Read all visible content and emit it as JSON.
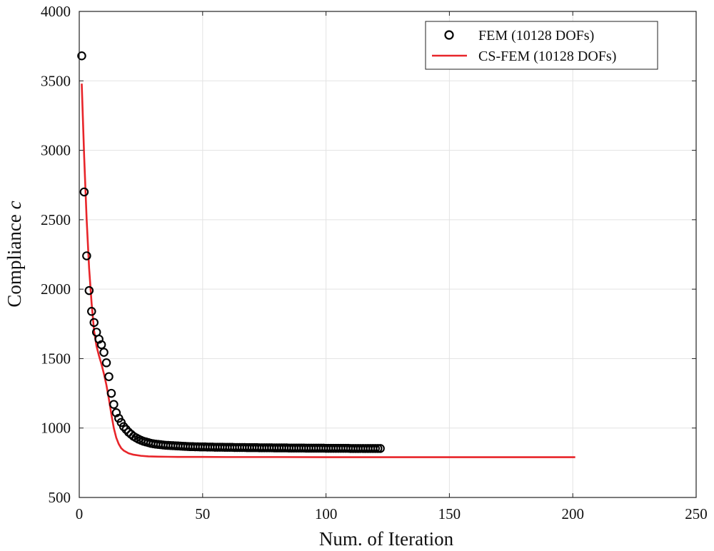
{
  "chart_data": {
    "type": "line",
    "xlabel": "Num. of Iteration",
    "ylabel": "Compliance",
    "ylabel_symbol": "c",
    "xlim": [
      0,
      250
    ],
    "ylim": [
      500,
      4000
    ],
    "xticks": [
      0,
      50,
      100,
      150,
      200,
      250
    ],
    "yticks": [
      500,
      1000,
      1500,
      2000,
      2500,
      3000,
      3500,
      4000
    ],
    "grid": true,
    "legend_position": "top-right",
    "series": [
      {
        "name": "FEM (10128 DOFs)",
        "style": "circle-markers",
        "color": "#000000",
        "x_start": 1,
        "x_end": 122,
        "values": [
          3680,
          2700,
          2240,
          1990,
          1840,
          1760,
          1690,
          1640,
          1600,
          1545,
          1470,
          1370,
          1250,
          1170,
          1110,
          1070,
          1040,
          1010,
          990,
          970,
          955,
          940,
          930,
          920,
          912,
          905,
          900,
          895,
          890,
          887,
          884,
          882,
          880,
          878,
          876,
          875,
          874,
          873,
          872,
          871,
          870,
          869,
          868,
          867,
          866,
          866,
          865,
          865,
          864,
          864,
          864,
          863,
          863,
          863,
          862,
          862,
          862,
          862,
          861,
          861,
          861,
          861,
          860,
          860,
          860,
          860,
          860,
          859,
          859,
          859,
          859,
          859,
          858,
          858,
          858,
          858,
          858,
          858,
          857,
          857,
          857,
          857,
          857,
          857,
          856,
          856,
          856,
          856,
          856,
          856,
          856,
          855,
          855,
          855,
          855,
          855,
          855,
          855,
          855,
          854,
          854,
          854,
          854,
          854,
          854,
          854,
          854,
          854,
          854,
          853,
          853,
          853,
          853,
          853,
          853,
          853,
          853,
          853,
          853,
          853,
          853,
          853
        ]
      },
      {
        "name": "CS-FEM (10128 DOFs)",
        "style": "solid-line",
        "color": "#e8252a",
        "x": [
          1,
          2,
          3,
          4,
          5,
          6,
          7,
          8,
          9,
          10,
          11,
          12,
          13,
          14,
          15,
          16,
          17,
          18,
          20,
          22,
          25,
          28,
          32,
          36,
          40,
          50,
          60,
          80,
          100,
          150,
          201
        ],
        "y": [
          3480,
          2950,
          2500,
          2150,
          1900,
          1700,
          1590,
          1520,
          1460,
          1390,
          1310,
          1210,
          1100,
          1000,
          930,
          885,
          855,
          838,
          818,
          808,
          800,
          796,
          794,
          793,
          792,
          792,
          791,
          791,
          790,
          790,
          790
        ]
      }
    ]
  }
}
